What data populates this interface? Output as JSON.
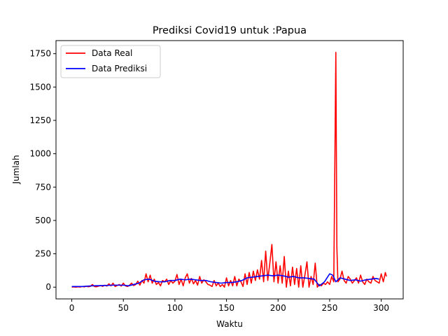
{
  "chart_data": {
    "type": "line",
    "title": "Prediksi Covid19 untuk :Papua",
    "xlabel": "Waktu",
    "ylabel": "Jumlah",
    "xlim": [
      -15.3,
      321.3
    ],
    "ylim": [
      -88,
      1848
    ],
    "xticks": [
      0,
      50,
      100,
      150,
      200,
      250,
      300
    ],
    "yticks": [
      0,
      250,
      500,
      750,
      1000,
      1250,
      1500,
      1750
    ],
    "grid": false,
    "legend_position": "top-left",
    "series": [
      {
        "name": "Data Real",
        "color": "#ff0000",
        "points": [
          [
            0,
            0
          ],
          [
            2,
            2
          ],
          [
            4,
            0
          ],
          [
            6,
            3
          ],
          [
            8,
            1
          ],
          [
            10,
            5
          ],
          [
            12,
            2
          ],
          [
            14,
            8
          ],
          [
            16,
            3
          ],
          [
            18,
            6
          ],
          [
            20,
            20
          ],
          [
            22,
            5
          ],
          [
            24,
            3
          ],
          [
            26,
            8
          ],
          [
            28,
            12
          ],
          [
            30,
            6
          ],
          [
            32,
            15
          ],
          [
            34,
            8
          ],
          [
            36,
            25
          ],
          [
            38,
            10
          ],
          [
            40,
            30
          ],
          [
            42,
            5
          ],
          [
            44,
            12
          ],
          [
            46,
            20
          ],
          [
            48,
            8
          ],
          [
            50,
            30
          ],
          [
            52,
            10
          ],
          [
            54,
            5
          ],
          [
            56,
            15
          ],
          [
            58,
            30
          ],
          [
            60,
            12
          ],
          [
            62,
            20
          ],
          [
            64,
            45
          ],
          [
            66,
            15
          ],
          [
            68,
            50
          ],
          [
            70,
            30
          ],
          [
            72,
            100
          ],
          [
            74,
            40
          ],
          [
            76,
            90
          ],
          [
            78,
            30
          ],
          [
            80,
            60
          ],
          [
            82,
            20
          ],
          [
            84,
            35
          ],
          [
            86,
            10
          ],
          [
            88,
            50
          ],
          [
            90,
            40
          ],
          [
            92,
            60
          ],
          [
            94,
            20
          ],
          [
            96,
            50
          ],
          [
            98,
            30
          ],
          [
            100,
            45
          ],
          [
            102,
            95
          ],
          [
            104,
            20
          ],
          [
            106,
            60
          ],
          [
            108,
            10
          ],
          [
            110,
            70
          ],
          [
            112,
            100
          ],
          [
            114,
            30
          ],
          [
            116,
            65
          ],
          [
            118,
            25
          ],
          [
            120,
            50
          ],
          [
            122,
            15
          ],
          [
            124,
            80
          ],
          [
            126,
            30
          ],
          [
            128,
            55
          ],
          [
            130,
            40
          ],
          [
            132,
            20
          ],
          [
            134,
            15
          ],
          [
            136,
            5
          ],
          [
            138,
            50
          ],
          [
            140,
            10
          ],
          [
            142,
            30
          ],
          [
            144,
            5
          ],
          [
            146,
            20
          ],
          [
            148,
            0
          ],
          [
            150,
            70
          ],
          [
            152,
            10
          ],
          [
            154,
            50
          ],
          [
            156,
            10
          ],
          [
            158,
            80
          ],
          [
            160,
            10
          ],
          [
            162,
            60
          ],
          [
            164,
            40
          ],
          [
            166,
            5
          ],
          [
            168,
            100
          ],
          [
            170,
            20
          ],
          [
            172,
            110
          ],
          [
            174,
            30
          ],
          [
            176,
            120
          ],
          [
            178,
            50
          ],
          [
            180,
            130
          ],
          [
            182,
            60
          ],
          [
            184,
            200
          ],
          [
            186,
            40
          ],
          [
            188,
            270
          ],
          [
            190,
            50
          ],
          [
            192,
            180
          ],
          [
            194,
            320
          ],
          [
            196,
            40
          ],
          [
            198,
            190
          ],
          [
            200,
            30
          ],
          [
            202,
            160
          ],
          [
            204,
            30
          ],
          [
            206,
            230
          ],
          [
            208,
            0
          ],
          [
            210,
            120
          ],
          [
            212,
            10
          ],
          [
            214,
            150
          ],
          [
            216,
            20
          ],
          [
            218,
            140
          ],
          [
            220,
            0
          ],
          [
            222,
            160
          ],
          [
            224,
            0
          ],
          [
            226,
            90
          ],
          [
            228,
            190
          ],
          [
            230,
            0
          ],
          [
            232,
            80
          ],
          [
            234,
            20
          ],
          [
            236,
            180
          ],
          [
            238,
            0
          ],
          [
            240,
            20
          ],
          [
            242,
            10
          ],
          [
            244,
            30
          ],
          [
            246,
            20
          ],
          [
            248,
            40
          ],
          [
            250,
            20
          ],
          [
            252,
            80
          ],
          [
            254,
            40
          ],
          [
            256,
            1760
          ],
          [
            257,
            300
          ],
          [
            258,
            40
          ],
          [
            260,
            60
          ],
          [
            262,
            120
          ],
          [
            264,
            50
          ],
          [
            266,
            30
          ],
          [
            268,
            80
          ],
          [
            270,
            60
          ],
          [
            272,
            30
          ],
          [
            274,
            50
          ],
          [
            276,
            70
          ],
          [
            278,
            30
          ],
          [
            280,
            90
          ],
          [
            282,
            40
          ],
          [
            284,
            20
          ],
          [
            286,
            60
          ],
          [
            288,
            40
          ],
          [
            290,
            30
          ],
          [
            292,
            80
          ],
          [
            294,
            50
          ],
          [
            296,
            40
          ],
          [
            298,
            30
          ],
          [
            300,
            100
          ],
          [
            302,
            40
          ],
          [
            304,
            110
          ],
          [
            305,
            80
          ]
        ]
      },
      {
        "name": "Data Prediksi",
        "color": "#0000ff",
        "points": [
          [
            0,
            5
          ],
          [
            10,
            5
          ],
          [
            20,
            10
          ],
          [
            30,
            12
          ],
          [
            40,
            15
          ],
          [
            50,
            15
          ],
          [
            55,
            10
          ],
          [
            60,
            20
          ],
          [
            65,
            30
          ],
          [
            70,
            55
          ],
          [
            75,
            60
          ],
          [
            80,
            45
          ],
          [
            85,
            40
          ],
          [
            90,
            40
          ],
          [
            95,
            50
          ],
          [
            100,
            50
          ],
          [
            105,
            60
          ],
          [
            110,
            55
          ],
          [
            115,
            60
          ],
          [
            120,
            55
          ],
          [
            125,
            50
          ],
          [
            130,
            50
          ],
          [
            135,
            40
          ],
          [
            140,
            35
          ],
          [
            145,
            30
          ],
          [
            150,
            35
          ],
          [
            155,
            35
          ],
          [
            160,
            40
          ],
          [
            165,
            50
          ],
          [
            170,
            70
          ],
          [
            175,
            75
          ],
          [
            180,
            80
          ],
          [
            185,
            85
          ],
          [
            190,
            90
          ],
          [
            195,
            85
          ],
          [
            200,
            90
          ],
          [
            205,
            85
          ],
          [
            210,
            75
          ],
          [
            215,
            80
          ],
          [
            220,
            70
          ],
          [
            225,
            70
          ],
          [
            230,
            65
          ],
          [
            235,
            60
          ],
          [
            240,
            10
          ],
          [
            245,
            40
          ],
          [
            250,
            100
          ],
          [
            253,
            90
          ],
          [
            256,
            40
          ],
          [
            260,
            70
          ],
          [
            265,
            60
          ],
          [
            270,
            50
          ],
          [
            275,
            55
          ],
          [
            280,
            45
          ],
          [
            285,
            55
          ],
          [
            290,
            60
          ],
          [
            295,
            65
          ],
          [
            298,
            60
          ]
        ]
      }
    ]
  }
}
